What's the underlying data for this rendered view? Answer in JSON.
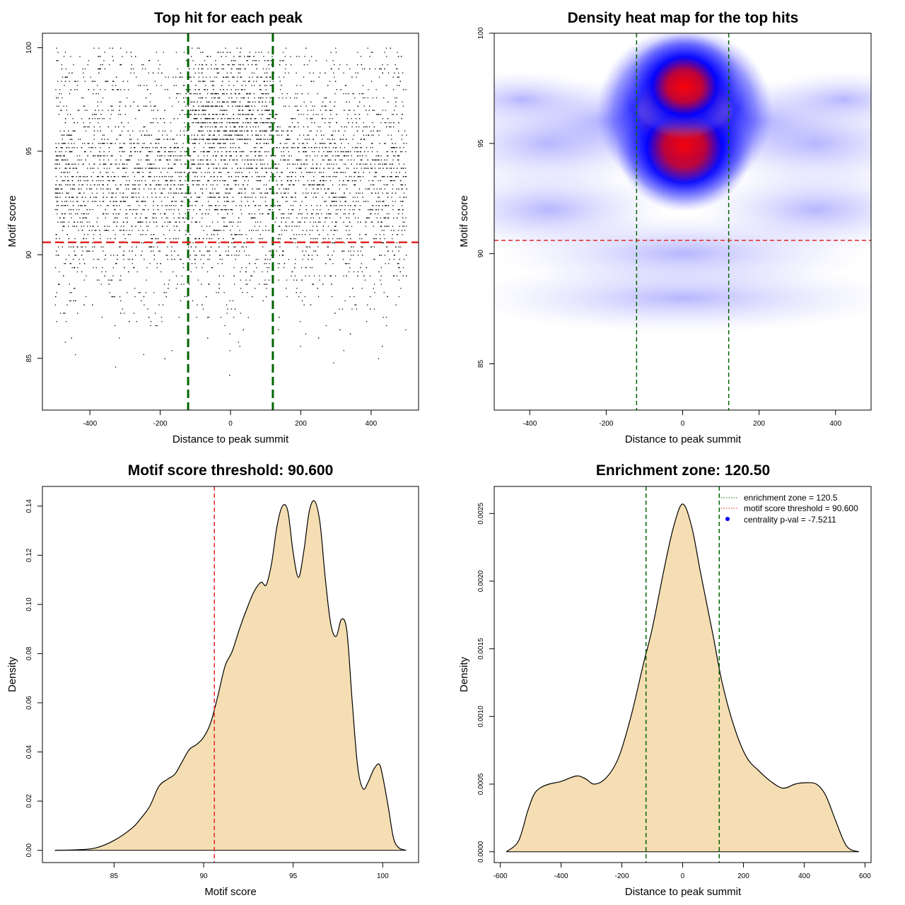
{
  "colors": {
    "ref_green": "#006400",
    "ref_red": "#e32626",
    "scatter_point": "#000000",
    "density_fill": "#f5deb3",
    "heat_low": "#ffffff",
    "heat_mid": "#0000ff",
    "heat_high": "#ff0000"
  },
  "chart_data": [
    {
      "type": "scatter",
      "title": "Top hit for each peak",
      "xlabel": "Distance to peak summit",
      "ylabel": "Motif score",
      "xlim": [
        -535,
        535
      ],
      "ylim": [
        82.5,
        100.7
      ],
      "xticks": [
        -400,
        -200,
        0,
        200,
        400
      ],
      "yticks": [
        85,
        90,
        95,
        100
      ],
      "vlines": [
        -120.5,
        120.5
      ],
      "hline": 90.6,
      "point_generation": {
        "x_range": [
          -500,
          500
        ],
        "y_range": [
          84,
          100
        ],
        "y_mean": 94.0,
        "y_sd": 3.0,
        "approx_count": 6000
      }
    },
    {
      "type": "heatmap",
      "title": "Density heat map for the top hits",
      "xlabel": "Distance to peak summit",
      "ylabel": "Motif score",
      "xlim": [
        -493,
        493
      ],
      "ylim": [
        82.9,
        100
      ],
      "xticks": [
        -400,
        -200,
        0,
        200,
        400
      ],
      "yticks": [
        85,
        90,
        95,
        100
      ],
      "vlines": [
        -120.5,
        120.5
      ],
      "hline": 90.6,
      "density_peaks": [
        {
          "x": 5,
          "y": 96.4,
          "weight": 1.0
        },
        {
          "x": 5,
          "y": 94.8,
          "weight": 0.7
        },
        {
          "x": 5,
          "y": 97.6,
          "weight": 0.55
        }
      ]
    },
    {
      "type": "area",
      "title": "Motif score threshold: 90.600",
      "xlabel": "Motif score",
      "ylabel": "Density",
      "xlim": [
        81.0,
        102.0
      ],
      "ylim": [
        -0.005,
        0.148
      ],
      "xticks": [
        85,
        90,
        95,
        100
      ],
      "yticks": [
        0.0,
        0.02,
        0.04,
        0.06,
        0.08,
        0.1,
        0.12,
        0.14
      ],
      "ytick_labels": [
        "0.00",
        "0.02",
        "0.04",
        "0.06",
        "0.08",
        "0.10",
        "0.12",
        "0.14"
      ],
      "vline": 90.6,
      "x": [
        81.7,
        83.0,
        84.0,
        85.0,
        86.0,
        86.5,
        87.0,
        87.5,
        88.0,
        88.4,
        88.8,
        89.2,
        89.6,
        90.0,
        90.4,
        90.8,
        91.2,
        91.6,
        92.0,
        92.4,
        92.8,
        93.2,
        93.5,
        93.8,
        94.1,
        94.4,
        94.7,
        95.0,
        95.3,
        95.6,
        95.9,
        96.2,
        96.5,
        96.8,
        97.1,
        97.4,
        97.7,
        98.0,
        98.3,
        98.6,
        98.9,
        99.2,
        99.5,
        99.8,
        100.0,
        100.3,
        100.6,
        100.9,
        101.3
      ],
      "y": [
        0.0,
        0.0002,
        0.001,
        0.004,
        0.009,
        0.013,
        0.018,
        0.026,
        0.029,
        0.031,
        0.036,
        0.041,
        0.043,
        0.046,
        0.052,
        0.063,
        0.075,
        0.081,
        0.09,
        0.098,
        0.105,
        0.109,
        0.108,
        0.117,
        0.132,
        0.14,
        0.138,
        0.121,
        0.111,
        0.122,
        0.138,
        0.142,
        0.133,
        0.11,
        0.092,
        0.087,
        0.094,
        0.089,
        0.06,
        0.034,
        0.025,
        0.028,
        0.033,
        0.035,
        0.03,
        0.018,
        0.005,
        0.001,
        0.0
      ]
    },
    {
      "type": "area",
      "title": "Enrichment zone: 120.50",
      "xlabel": "Distance to peak summit",
      "ylabel": "Density",
      "xlim": [
        -620,
        620
      ],
      "ylim": [
        -8e-05,
        0.0027
      ],
      "xticks": [
        -600,
        -400,
        -200,
        0,
        200,
        400,
        600
      ],
      "yticks": [
        0.0,
        0.0005,
        0.001,
        0.0015,
        0.002,
        0.0025
      ],
      "ytick_labels": [
        "0.0000",
        "0.0005",
        "0.0010",
        "0.0015",
        "0.0020",
        "0.0025"
      ],
      "vlines": [
        -120.5,
        120.5
      ],
      "x": [
        -580,
        -540,
        -510,
        -490,
        -470,
        -440,
        -400,
        -350,
        -320,
        -290,
        -250,
        -210,
        -170,
        -130,
        -100,
        -60,
        -30,
        0,
        30,
        60,
        100,
        130,
        170,
        210,
        250,
        290,
        330,
        370,
        400,
        440,
        470,
        500,
        530,
        550,
        580
      ],
      "y": [
        0.0,
        8e-05,
        0.0003,
        0.00042,
        0.00047,
        0.0005,
        0.00052,
        0.00056,
        0.00054,
        0.0005,
        0.00055,
        0.0007,
        0.001,
        0.00138,
        0.00165,
        0.0021,
        0.0024,
        0.00257,
        0.0024,
        0.00205,
        0.0016,
        0.00125,
        0.00092,
        0.0007,
        0.0006,
        0.00052,
        0.00047,
        0.0005,
        0.00051,
        0.0005,
        0.00042,
        0.00025,
        8e-05,
        2e-05,
        0.0
      ],
      "legend": [
        {
          "label": "enrichment zone = 120.5",
          "style": "green-dotted-line"
        },
        {
          "label": "motif score threshold = 90.600",
          "style": "red-dotted-line"
        },
        {
          "label": "centrality p-val = -7.5211",
          "style": "blue-point"
        }
      ],
      "legend_position": "top-right"
    }
  ]
}
